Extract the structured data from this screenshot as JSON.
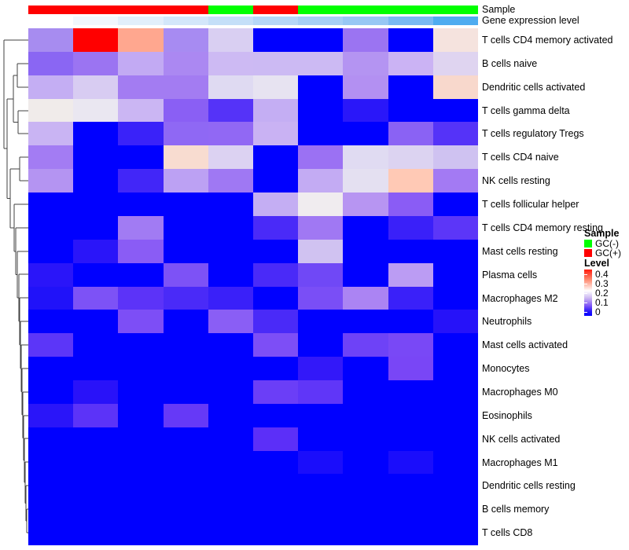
{
  "chart_data": {
    "type": "heatmap",
    "title": "",
    "n_columns": 10,
    "row_labels": [
      "T cells CD4 memory activated",
      "B cells naive",
      "Dendritic cells activated",
      "T cells gamma delta",
      "T cells regulatory  Tregs",
      "T cells CD4 naive",
      "NK cells resting",
      "T cells follicular helper",
      "T cells CD4 memory resting",
      "Mast cells resting",
      "Plasma cells",
      "Macrophages M2",
      "Neutrophils",
      "Mast cells activated",
      "Monocytes",
      "Macrophages M0",
      "Eosinophils",
      "NK cells activated",
      "Macrophages M1",
      "Dendritic cells resting",
      "B cells memory",
      "T cells CD8"
    ],
    "cell_values": [
      [
        0.08,
        0.45,
        0.33,
        0.08,
        0.135,
        0,
        0,
        0.075,
        0,
        0.22
      ],
      [
        0.06,
        0.075,
        0.11,
        0.09,
        0.115,
        0.115,
        0.115,
        0.09,
        0.11,
        0.135
      ],
      [
        0.11,
        0.13,
        0.08,
        0.08,
        0.14,
        0.16,
        0,
        0.09,
        0,
        0.25
      ],
      [
        0.18,
        0.17,
        0.115,
        0.06,
        0.04,
        0.11,
        0,
        0.02,
        0,
        0
      ],
      [
        0.11,
        0,
        0.025,
        0.065,
        0.065,
        0.11,
        0,
        0,
        0.06,
        0.04
      ],
      [
        0.08,
        0,
        0,
        0.24,
        0.135,
        0,
        0.07,
        0.14,
        0.135,
        0.12
      ],
      [
        0.09,
        0,
        0.03,
        0.1,
        0.075,
        0,
        0.11,
        0.15,
        0.29,
        0.08
      ],
      [
        0,
        0,
        0,
        0,
        0,
        0.11,
        0.18,
        0.095,
        0.06,
        0
      ],
      [
        0,
        0,
        0.075,
        0,
        0,
        0.03,
        0.075,
        0,
        0.025,
        0.04
      ],
      [
        0,
        0.02,
        0.06,
        0,
        0,
        0,
        0.12,
        0,
        0,
        0
      ],
      [
        0.02,
        0,
        0,
        0.055,
        0,
        0.03,
        0.05,
        0,
        0.1,
        0
      ],
      [
        0.015,
        0.055,
        0.04,
        0.03,
        0.025,
        0,
        0.05,
        0.085,
        0.025,
        0
      ],
      [
        0,
        0,
        0.05,
        0,
        0.06,
        0.03,
        0,
        0,
        0,
        0.015
      ],
      [
        0.04,
        0,
        0,
        0,
        0,
        0.05,
        0,
        0.045,
        0.05,
        0
      ],
      [
        0,
        0,
        0,
        0,
        0,
        0,
        0.022,
        0,
        0.05,
        0
      ],
      [
        0,
        0.018,
        0,
        0,
        0,
        0.045,
        0.042,
        0,
        0,
        0
      ],
      [
        0.02,
        0.04,
        0,
        0.045,
        0,
        0,
        0,
        0,
        0,
        0
      ],
      [
        0,
        0,
        0,
        0,
        0,
        0.04,
        0,
        0,
        0,
        0
      ],
      [
        0,
        0,
        0,
        0,
        0,
        0,
        0.01,
        0,
        0.01,
        0
      ],
      [
        0,
        0,
        0,
        0,
        0,
        0,
        0,
        0,
        0,
        0
      ],
      [
        0,
        0,
        0,
        0,
        0,
        0,
        0,
        0,
        0,
        0
      ],
      [
        0,
        0,
        0,
        0,
        0,
        0,
        0,
        0,
        0,
        0
      ]
    ],
    "cell_colors": [
      [
        "#A78CF0",
        "#FF0000",
        "#FFA78F",
        "#A78BF2",
        "#D9CFF2",
        "#0000FF",
        "#0000FF",
        "#9B74F2",
        "#0000FF",
        "#F5E3DE"
      ],
      [
        "#8A66F3",
        "#9B74F2",
        "#C2AAF3",
        "#AB88F2",
        "#CDBAF3",
        "#CCBAF3",
        "#CCBAF3",
        "#B494F2",
        "#CBB3F4",
        "#DFD4F0"
      ],
      [
        "#C4AEF3",
        "#D8CCF2",
        "#A37CF2",
        "#A37CF2",
        "#DFDAF2",
        "#E7E3F1",
        "#0000FF",
        "#B390F2",
        "#0000FF",
        "#F8D8CC"
      ],
      [
        "#F0EBEA",
        "#EAE7F1",
        "#CBB6F3",
        "#8A5FF4",
        "#5533F8",
        "#C4AEF3",
        "#0000FF",
        "#2A17F9",
        "#0000FF",
        "#0000FF"
      ],
      [
        "#C9B4F3",
        "#0000FF",
        "#3A22F9",
        "#8F68F4",
        "#9168F4",
        "#C9B2F3",
        "#0000FF",
        "#0000FF",
        "#8A62F4",
        "#5533F8"
      ],
      [
        "#A37CF3",
        "#0000FF",
        "#0000FF",
        "#F8DCD0",
        "#DCD2F2",
        "#0000FF",
        "#9B71F3",
        "#E0DBF2",
        "#DCD3F1",
        "#CFC2F1"
      ],
      [
        "#B494F2",
        "#0000FF",
        "#4226F8",
        "#BCA1F3",
        "#9F78F3",
        "#0000FF",
        "#C3ABF3",
        "#E4E0F1",
        "#FFC9B5",
        "#A37AF3"
      ],
      [
        "#0000FF",
        "#0000FF",
        "#0000FF",
        "#0000FF",
        "#0000FF",
        "#C4AEF3",
        "#F0ECEF",
        "#B795F2",
        "#8A5CF5",
        "#0000FF"
      ],
      [
        "#0000FF",
        "#0000FF",
        "#A17BF3",
        "#0000FF",
        "#0000FF",
        "#4A2AF8",
        "#A078F3",
        "#0000FF",
        "#3A20F9",
        "#5C36F8"
      ],
      [
        "#0000FF",
        "#2A15F9",
        "#8A5CF5",
        "#0000FF",
        "#0000FF",
        "#0000FF",
        "#D0C2F1",
        "#0000FF",
        "#0000FF",
        "#0000FF"
      ],
      [
        "#2A15F9",
        "#0000FF",
        "#0000FF",
        "#7D52F6",
        "#0000FF",
        "#4A2AF8",
        "#7048F6",
        "#0000FF",
        "#BB9CF3",
        "#0000FF"
      ],
      [
        "#2012F9",
        "#7D52F6",
        "#5C33F8",
        "#4A2AF8",
        "#3A20F9",
        "#0000FF",
        "#7A4EF6",
        "#AB84F3",
        "#3A20F9",
        "#0000FF"
      ],
      [
        "#0000FF",
        "#0000FF",
        "#7D4EF6",
        "#0000FF",
        "#8A5EF5",
        "#4A2AF8",
        "#0000FF",
        "#0000FF",
        "#0000FF",
        "#2612F9"
      ],
      [
        "#5C36F8",
        "#0000FF",
        "#0000FF",
        "#0000FF",
        "#0000FF",
        "#7D4EF6",
        "#0000FF",
        "#6E42F7",
        "#7948F6",
        "#0000FF"
      ],
      [
        "#0000FF",
        "#0000FF",
        "#0000FF",
        "#0000FF",
        "#0000FF",
        "#0000FF",
        "#3318F9",
        "#0000FF",
        "#7946F6",
        "#0000FF"
      ],
      [
        "#0000FF",
        "#2912F9",
        "#0000FF",
        "#0000FF",
        "#0000FF",
        "#6B3EF7",
        "#6036F8",
        "#0000FF",
        "#0000FF",
        "#0000FF"
      ],
      [
        "#2A15F9",
        "#5C33F8",
        "#0000FF",
        "#6639F7",
        "#0000FF",
        "#0000FF",
        "#0000FF",
        "#0000FF",
        "#0000FF",
        "#0000FF"
      ],
      [
        "#0000FF",
        "#0000FF",
        "#0000FF",
        "#0000FF",
        "#0000FF",
        "#5C2FF8",
        "#0000FF",
        "#0000FF",
        "#0000FF",
        "#0000FF"
      ],
      [
        "#0000FF",
        "#0000FF",
        "#0000FF",
        "#0000FF",
        "#0000FF",
        "#0000FF",
        "#1A0DFB",
        "#0000FF",
        "#1A0DFB",
        "#0000FF"
      ],
      [
        "#0000FF",
        "#0000FF",
        "#0000FF",
        "#0000FF",
        "#0000FF",
        "#0000FF",
        "#0000FF",
        "#0000FF",
        "#0000FF",
        "#0000FF"
      ],
      [
        "#0000FF",
        "#0000FF",
        "#0000FF",
        "#0000FF",
        "#0000FF",
        "#0000FF",
        "#0000FF",
        "#0000FF",
        "#0000FF",
        "#0000FF"
      ],
      [
        "#0000FF",
        "#0000FF",
        "#0000FF",
        "#0000FF",
        "#0000FF",
        "#0000FF",
        "#0000FF",
        "#0000FF",
        "#0000FF",
        "#0000FF"
      ]
    ],
    "col_annotations": {
      "sample": {
        "label": "Sample",
        "values": [
          "GC(+)",
          "GC(+)",
          "GC(+)",
          "GC(+)",
          "GC(-)",
          "GC(+)",
          "GC(-)",
          "GC(-)",
          "GC(-)",
          "GC(-)"
        ],
        "color_map": {
          "GC(+)": "#FF0000",
          "GC(-)": "#00FF00"
        }
      },
      "gene_expression_level": {
        "label": "Gene expression level",
        "colors": [
          "#FFFFFF",
          "#F1F7FD",
          "#E2EFFB",
          "#D3E7FA",
          "#C4DFF8",
          "#B5D7F7",
          "#A6CFF5",
          "#97C7F4",
          "#7ABAF2",
          "#4FACF0"
        ]
      }
    },
    "legend": {
      "sample": {
        "title": "Sample",
        "items": [
          {
            "label": "GC(-)",
            "color": "#00FF00"
          },
          {
            "label": "GC(+)",
            "color": "#FF0000"
          }
        ]
      },
      "level": {
        "title": "Level",
        "ticks": [
          "0.4",
          "0.3",
          "0.2",
          "0.1",
          "0"
        ],
        "scale_colors": [
          "#FF0000",
          "#FFFFFF",
          "#0000FF"
        ],
        "range": [
          0,
          0.45
        ]
      }
    },
    "row_dendrogram": {
      "segments": [
        [
          5,
          51,
          36,
          51
        ],
        [
          5,
          51,
          5,
          189
        ],
        [
          5,
          189,
          9,
          189
        ],
        [
          9,
          126,
          9,
          252.5
        ],
        [
          9,
          126,
          17,
          126
        ],
        [
          9,
          252.5,
          13,
          252.5
        ],
        [
          17,
          96,
          17,
          155.5
        ],
        [
          17,
          96,
          22,
          96
        ],
        [
          17,
          155.5,
          23,
          155.5
        ],
        [
          22,
          81,
          22,
          111
        ],
        [
          22,
          81,
          36,
          81
        ],
        [
          22,
          111,
          36,
          111
        ],
        [
          23,
          141,
          23,
          170
        ],
        [
          23,
          141,
          36,
          141
        ],
        [
          23,
          170,
          36,
          170
        ],
        [
          13,
          215,
          13,
          290
        ],
        [
          13,
          215,
          25,
          215
        ],
        [
          13,
          290,
          18,
          290
        ],
        [
          25,
          200,
          25,
          230
        ],
        [
          25,
          200,
          36,
          200
        ],
        [
          25,
          230,
          36,
          230
        ],
        [
          18,
          260,
          18,
          320
        ],
        [
          18,
          260,
          36,
          260
        ],
        [
          18,
          320,
          20,
          320
        ],
        [
          20,
          290,
          20,
          349.5
        ],
        [
          20,
          290,
          36,
          290
        ],
        [
          20,
          349.5,
          22,
          349.5
        ],
        [
          22,
          320,
          22,
          379
        ],
        [
          22,
          320,
          36,
          320
        ],
        [
          22,
          379,
          24,
          379
        ],
        [
          24,
          349,
          24,
          409
        ],
        [
          24,
          349,
          36,
          349
        ],
        [
          24,
          409,
          25,
          409
        ],
        [
          25,
          379,
          25,
          439
        ],
        [
          25,
          379,
          36,
          379
        ],
        [
          25,
          439,
          26,
          439
        ],
        [
          26,
          409,
          26,
          469
        ],
        [
          26,
          409,
          36,
          409
        ],
        [
          26,
          469,
          27,
          469
        ],
        [
          27,
          439,
          27,
          498.5
        ],
        [
          27,
          439,
          36,
          439
        ],
        [
          27,
          498.5,
          28,
          498.5
        ],
        [
          28,
          469,
          28,
          528
        ],
        [
          28,
          469,
          36,
          469
        ],
        [
          28,
          528,
          29,
          528
        ],
        [
          29,
          499,
          29,
          557.5
        ],
        [
          29,
          499,
          36,
          499
        ],
        [
          29,
          557.5,
          30,
          557.5
        ],
        [
          30,
          529,
          30,
          586
        ],
        [
          30,
          529,
          36,
          529
        ],
        [
          30,
          586,
          31,
          586
        ],
        [
          31,
          558,
          31,
          614
        ],
        [
          31,
          558,
          36,
          558
        ],
        [
          31,
          614,
          32,
          614
        ],
        [
          32,
          588,
          32,
          640.5
        ],
        [
          32,
          588,
          36,
          588
        ],
        [
          32,
          640.5,
          33,
          640.5
        ],
        [
          33,
          618,
          33,
          663
        ],
        [
          33,
          618,
          36,
          618
        ],
        [
          33,
          663,
          34,
          663
        ],
        [
          34,
          648,
          34,
          678
        ],
        [
          34,
          648,
          36,
          648
        ],
        [
          34,
          678,
          36,
          678
        ]
      ]
    }
  }
}
